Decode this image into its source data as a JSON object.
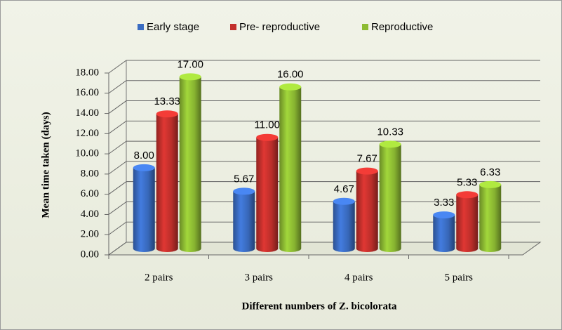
{
  "chart_data": {
    "type": "bar3d",
    "x_label": "Different numbers of Z. bicolorata",
    "y_label": "Mean  time taken (days)",
    "categories": [
      "2 pairs",
      "3 pairs",
      "4 pairs",
      "5 pairs"
    ],
    "series": [
      {
        "name": "Early stage",
        "color": "#3a6cc2",
        "values": [
          8.0,
          5.67,
          4.67,
          3.33
        ],
        "value_labels": [
          "8.00",
          "5.67",
          "4.67",
          "3.33"
        ]
      },
      {
        "name": "Pre- reproductive",
        "color": "#c3302c",
        "values": [
          13.33,
          11.0,
          7.67,
          5.33
        ],
        "value_labels": [
          "13.33",
          "11.00",
          "7.67",
          "5.33"
        ]
      },
      {
        "name": "Reproductive",
        "color": "#8dbb33",
        "values": [
          17.0,
          16.0,
          10.33,
          6.33
        ],
        "value_labels": [
          "17.00",
          "16.00",
          "10.33",
          "6.33"
        ]
      }
    ],
    "ylim": [
      0,
      18
    ],
    "yticks": [
      {
        "value": 0,
        "label": "0.00"
      },
      {
        "value": 2,
        "label": "2.00"
      },
      {
        "value": 4,
        "label": "4.00"
      },
      {
        "value": 6,
        "label": "6.00"
      },
      {
        "value": 8,
        "label": "8.00"
      },
      {
        "value": 10,
        "label": "10.00"
      },
      {
        "value": 12,
        "label": "12.00"
      },
      {
        "value": 14,
        "label": "14.00"
      },
      {
        "value": 16,
        "label": "16.00"
      },
      {
        "value": 18,
        "label": "18.00"
      }
    ],
    "grid": true
  }
}
